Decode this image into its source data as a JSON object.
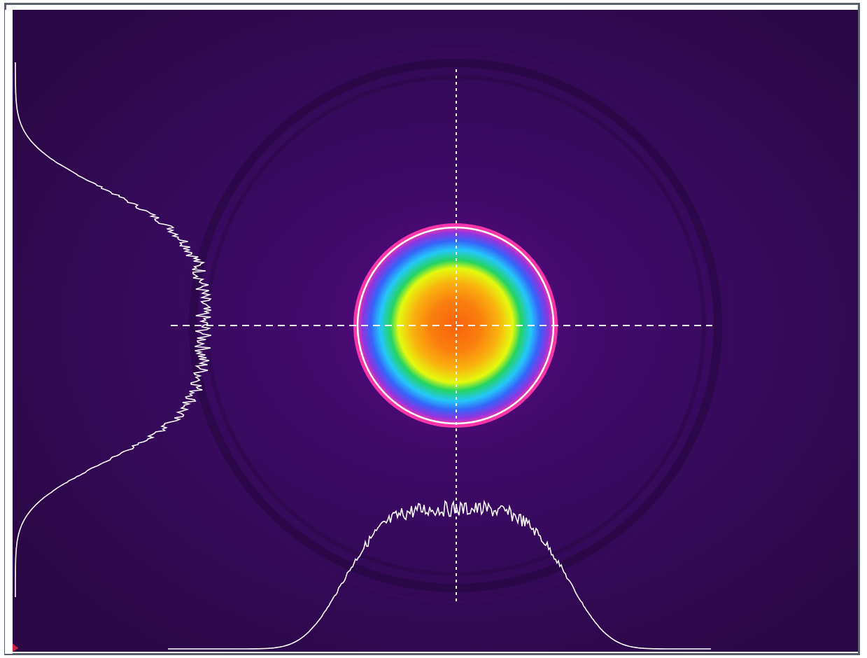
{
  "viewer": {
    "type": "beam-profile",
    "colormap": [
      "#2c0a48",
      "#3b0a66",
      "#7a0a9a",
      "#ff2aa8",
      "#8a2be2",
      "#2a5cff",
      "#18c8ff",
      "#18d65a",
      "#e8ff00",
      "#ffb000",
      "#ff5a00"
    ],
    "crosshair_color": "#ffffff",
    "fit_circle_color": "#ffffff",
    "profile_color": "#ffffff",
    "frame_color": "#5a5f6e",
    "background_color": "#2c0a48"
  }
}
